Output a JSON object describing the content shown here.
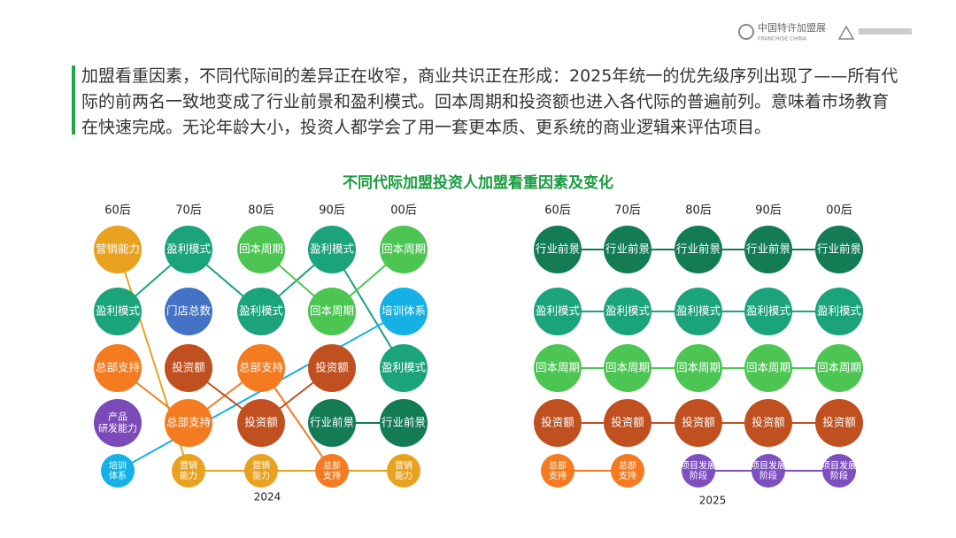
{
  "header": {
    "logo_name": "中国特许加盟展",
    "logo_sub": "FRANCHISE CHINA"
  },
  "intro": "加盟看重因素，不同代际间的差异正在收窄，商业共识正在形成：2025年统一的优先级序列出现了——所有代际的前两名一致地变成了行业前景和盈利模式。回本周期和投资额也进入各代际的普遍前列。意味着市场教育在快速完成。无论年龄大小，投资人都学会了用一套更本质、更系统的商业逻辑来评估项目。",
  "title": "不同代际加盟投资人加盟看重因素及变化",
  "panels": [
    {
      "year": "2024",
      "columns": [
        {
          "header": "60后",
          "nodes": [
            {
              "label": "营销能力",
              "color": "#e9a21f"
            },
            {
              "label": "盈利模式",
              "color": "#1ba37c"
            },
            {
              "label": "总部支持",
              "color": "#f47b20"
            },
            {
              "label": "产品\n研发能力",
              "color": "#7b4ab8"
            },
            {
              "label": "培训\n体系",
              "color": "#14b1e7"
            }
          ]
        },
        {
          "header": "70后",
          "nodes": [
            {
              "label": "盈利模式",
              "color": "#1ba37c"
            },
            {
              "label": "门店总数",
              "color": "#4472c4"
            },
            {
              "label": "投资额",
              "color": "#c0501f"
            },
            {
              "label": "总部支持",
              "color": "#f47b20"
            },
            {
              "label": "营销\n能力",
              "color": "#e9a21f"
            }
          ]
        },
        {
          "header": "80后",
          "nodes": [
            {
              "label": "回本周期",
              "color": "#4cc552"
            },
            {
              "label": "盈利模式",
              "color": "#1ba37c"
            },
            {
              "label": "总部支持",
              "color": "#f47b20"
            },
            {
              "label": "投资额",
              "color": "#c0501f"
            },
            {
              "label": "营销\n能力",
              "color": "#e9a21f"
            }
          ]
        },
        {
          "header": "90后",
          "nodes": [
            {
              "label": "盈利模式",
              "color": "#1ba37c"
            },
            {
              "label": "回本周期",
              "color": "#4cc552"
            },
            {
              "label": "投资额",
              "color": "#c0501f"
            },
            {
              "label": "行业前景",
              "color": "#137c55"
            },
            {
              "label": "总部\n支持",
              "color": "#f47b20"
            }
          ]
        },
        {
          "header": "00后",
          "nodes": [
            {
              "label": "回本周期",
              "color": "#4cc552"
            },
            {
              "label": "培训体系",
              "color": "#14b1e7"
            },
            {
              "label": "盈利模式",
              "color": "#1ba37c"
            },
            {
              "label": "行业前景",
              "color": "#137c55"
            },
            {
              "label": "营销\n能力",
              "color": "#e9a21f"
            }
          ]
        }
      ]
    },
    {
      "year": "2025",
      "columns": [
        {
          "header": "60后",
          "nodes": [
            {
              "label": "行业前景",
              "color": "#137c55"
            },
            {
              "label": "盈利模式",
              "color": "#1ba37c"
            },
            {
              "label": "回本周期",
              "color": "#4cc552"
            },
            {
              "label": "投资额",
              "color": "#c0501f"
            },
            {
              "label": "总部\n支持",
              "color": "#f47b20"
            }
          ]
        },
        {
          "header": "70后",
          "nodes": [
            {
              "label": "行业前景",
              "color": "#137c55"
            },
            {
              "label": "盈利模式",
              "color": "#1ba37c"
            },
            {
              "label": "回本周期",
              "color": "#4cc552"
            },
            {
              "label": "投资额",
              "color": "#c0501f"
            },
            {
              "label": "总部\n支持",
              "color": "#f47b20"
            }
          ]
        },
        {
          "header": "80后",
          "nodes": [
            {
              "label": "行业前景",
              "color": "#137c55"
            },
            {
              "label": "盈利模式",
              "color": "#1ba37c"
            },
            {
              "label": "回本周期",
              "color": "#4cc552"
            },
            {
              "label": "投资额",
              "color": "#c0501f"
            },
            {
              "label": "项目发展\n阶段",
              "color": "#7e4fc0"
            }
          ]
        },
        {
          "header": "90后",
          "nodes": [
            {
              "label": "行业前景",
              "color": "#137c55"
            },
            {
              "label": "盈利模式",
              "color": "#1ba37c"
            },
            {
              "label": "回本周期",
              "color": "#4cc552"
            },
            {
              "label": "投资额",
              "color": "#c0501f"
            },
            {
              "label": "项目发展\n阶段",
              "color": "#7e4fc0"
            }
          ]
        },
        {
          "header": "00后",
          "nodes": [
            {
              "label": "行业前景",
              "color": "#137c55"
            },
            {
              "label": "盈利模式",
              "color": "#1ba37c"
            },
            {
              "label": "回本周期",
              "color": "#4cc552"
            },
            {
              "label": "投资额",
              "color": "#c0501f"
            },
            {
              "label": "项目发展\n阶段",
              "color": "#7e4fc0"
            }
          ]
        }
      ]
    }
  ]
}
